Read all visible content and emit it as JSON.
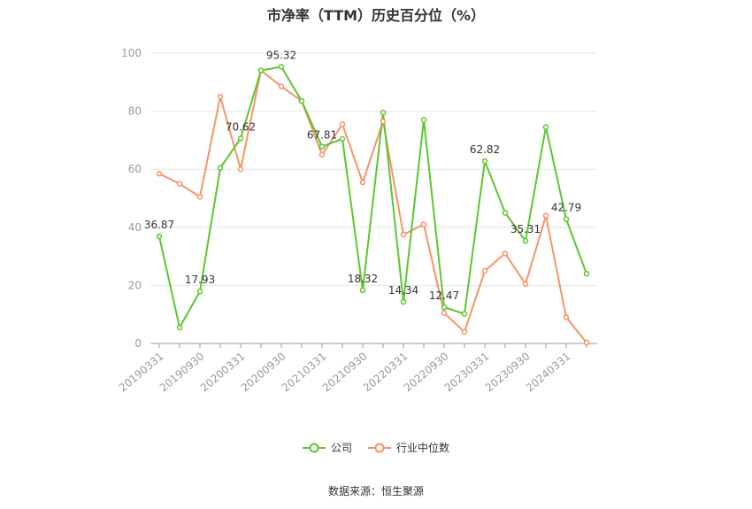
{
  "chart_data": {
    "type": "line",
    "title": "市净率（TTM）历史百分位（%）",
    "xlabel": "",
    "ylabel": "",
    "ylim": [
      0,
      100
    ],
    "yticks": [
      0,
      20,
      40,
      60,
      80,
      100
    ],
    "xtick_labels": [
      "20190331",
      "20190930",
      "20200331",
      "20200930",
      "20210331",
      "20210930",
      "20220331",
      "20220930",
      "20230331",
      "20230930",
      "20240331"
    ],
    "categories": [
      "20190331",
      "20190630",
      "20190930",
      "20191231",
      "20200331",
      "20200630",
      "20200930",
      "20201231",
      "20210331",
      "20210630",
      "20210930",
      "20211231",
      "20220331",
      "20220630",
      "20220930",
      "20221231",
      "20230331",
      "20230630",
      "20230930",
      "20231231",
      "20240331",
      "20240630"
    ],
    "series": [
      {
        "name": "公司",
        "color": "#5cc630",
        "values": [
          36.87,
          5.5,
          17.93,
          60.5,
          70.62,
          94.0,
          95.32,
          83.5,
          67.81,
          70.5,
          18.32,
          79.5,
          14.34,
          77.0,
          12.47,
          10.2,
          62.82,
          45.0,
          35.31,
          74.5,
          42.79,
          24.0
        ],
        "labels": {
          "0": "36.87",
          "2": "17.93",
          "4": "70.62",
          "6": "95.32",
          "8": "67.81",
          "10": "18.32",
          "12": "14.34",
          "14": "12.47",
          "16": "62.82",
          "18": "35.31",
          "20": "42.79"
        }
      },
      {
        "name": "行业中位数",
        "color": "#f59467",
        "values": [
          58.5,
          55.0,
          50.5,
          85.0,
          60.0,
          94.0,
          88.5,
          83.5,
          65.0,
          75.5,
          55.5,
          76.5,
          37.5,
          41.0,
          10.5,
          4.0,
          25.0,
          31.0,
          20.5,
          44.0,
          9.0,
          0.3
        ]
      }
    ],
    "grid": true,
    "legend_position": "bottom-center"
  },
  "legend": {
    "company": "公司",
    "industry": "行业中位数"
  },
  "source": "数据来源：恒生聚源"
}
